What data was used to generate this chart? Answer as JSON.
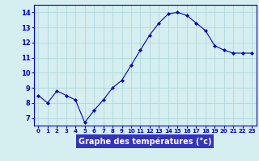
{
  "x": [
    0,
    1,
    2,
    3,
    4,
    5,
    6,
    7,
    8,
    9,
    10,
    11,
    12,
    13,
    14,
    15,
    16,
    17,
    18,
    19,
    20,
    21,
    22,
    23
  ],
  "y": [
    8.5,
    8.0,
    8.8,
    8.5,
    8.2,
    6.7,
    7.5,
    8.2,
    9.0,
    9.5,
    10.5,
    11.5,
    12.5,
    13.3,
    13.9,
    14.0,
    13.8,
    13.3,
    12.8,
    11.8,
    11.5,
    11.3,
    11.3,
    11.3
  ],
  "xlabel": "Graphe des températures (°c)",
  "ylim": [
    6.5,
    14.5
  ],
  "xlim": [
    -0.5,
    23.5
  ],
  "yticks": [
    7,
    8,
    9,
    10,
    11,
    12,
    13,
    14
  ],
  "xticks": [
    0,
    1,
    2,
    3,
    4,
    5,
    6,
    7,
    8,
    9,
    10,
    11,
    12,
    13,
    14,
    15,
    16,
    17,
    18,
    19,
    20,
    21,
    22,
    23
  ],
  "line_color": "#0000cc",
  "marker_color": "#0000cc",
  "bg_color": "#d5eef0",
  "grid_color": "#b0d8dc",
  "xlabel_bg": "#3333bb",
  "label_color": "#ffffff",
  "tick_color": "#0000cc",
  "spine_color": "#0000cc"
}
